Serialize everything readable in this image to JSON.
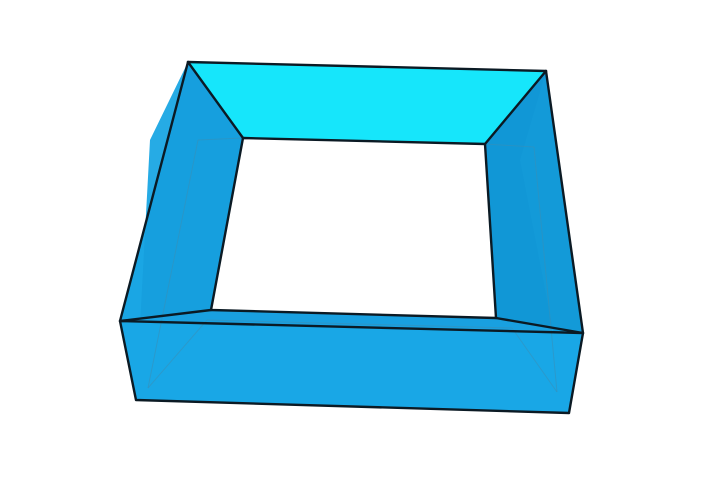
{
  "figure": {
    "shape": "square frame (hollow rectangular prism)",
    "colors": {
      "top": "#16e6fb",
      "inner_back": "#15eefc",
      "side_face": "#169fde",
      "side_face_dark": "#1197d6",
      "front_face": "#19a7e6",
      "edge": "#0b1a24",
      "background": "#ffffff"
    }
  }
}
